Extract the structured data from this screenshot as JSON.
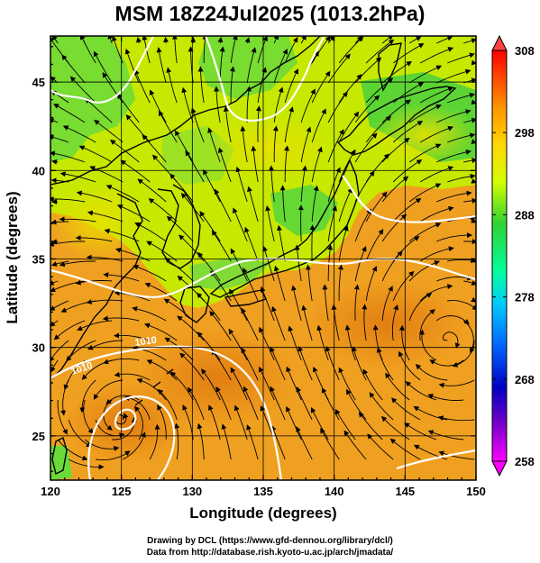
{
  "title": "MSM 18Z24Jul2025 (1013.2hPa)",
  "map": {
    "xlabel": "Longitude (degrees)",
    "ylabel": "Latitude  (degrees)",
    "xlim": [
      120,
      150
    ],
    "ylim": [
      22.5,
      47.6
    ],
    "xticks": [
      120,
      125,
      130,
      135,
      140,
      145,
      150
    ],
    "yticks": [
      25,
      30,
      35,
      40,
      45
    ],
    "features": [
      "temperature-shading",
      "streamlines",
      "white-isobars",
      "coastlines",
      "lat-lon-grid"
    ],
    "isobar_labels": [
      "1010",
      "1010"
    ]
  },
  "colorbar": {
    "ticks": [
      "308",
      "298",
      "288",
      "278",
      "268",
      "258"
    ],
    "range": [
      258,
      308
    ],
    "colormap": [
      "#ff00ff",
      "#0000c0",
      "#0064ff",
      "#00c8ff",
      "#00ffa0",
      "#32d232",
      "#d2ff00",
      "#ffd700",
      "#ff9600",
      "#ff5000",
      "#ff0000"
    ]
  },
  "credits": {
    "line1": "Drawing by DCL (https://www.gfd-dennou.org/library/dcl/)",
    "line2": "Data from http://database.rish.kyoto-u.ac.jp/arch/jmadata/"
  },
  "colors": {
    "land_cool": "#4fd13a",
    "land_mid": "#c7e800",
    "sea_warm": "#f0a020",
    "isobar": "#ffffff",
    "streamline": "#000000"
  }
}
